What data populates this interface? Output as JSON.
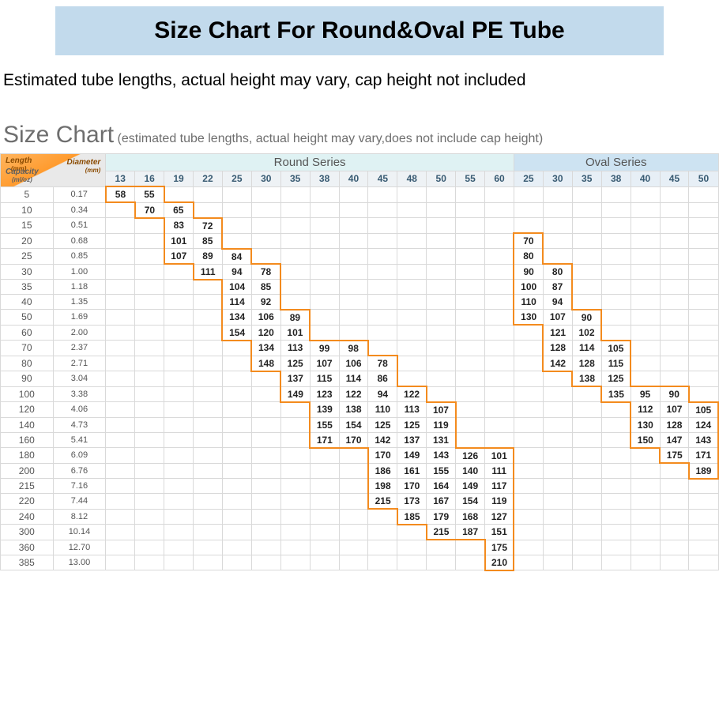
{
  "title": "Size Chart For Round&Oval PE Tube",
  "subtitle": "Estimated tube lengths, actual height may vary, cap height not included",
  "chartHeading": "Size Chart",
  "chartHeadingNote": "(estimated tube lengths, actual height may vary,does not include cap height)",
  "corner": {
    "length": "Length",
    "lengthUnit": "(mm)",
    "diameter": "Diameter",
    "diameterUnit": "(mm)",
    "capacity": "Capacity",
    "capacityUnit": "(ml/oz)"
  },
  "series": {
    "round": "Round Series",
    "oval": "Oval Series"
  },
  "roundDiameters": [
    13,
    16,
    19,
    22,
    25,
    30,
    35,
    38,
    40,
    45,
    48,
    50,
    55,
    60
  ],
  "ovalDiameters": [
    25,
    30,
    35,
    38,
    40,
    45,
    50
  ],
  "colors": {
    "banner_bg": "#c2daec",
    "round_header_bg": "#dff2f3",
    "oval_header_bg": "#cde3f2",
    "diam_bg": "#eef2f5",
    "grid": "#d9d9d9",
    "step_border": "#f38b1e",
    "text": "#444444",
    "heading_grey": "#6e6e6e"
  },
  "rows": [
    {
      "cap": 5,
      "oz": "0.17",
      "round": {
        "13": 58,
        "16": 55
      },
      "oval": {}
    },
    {
      "cap": 10,
      "oz": "0.34",
      "round": {
        "16": 70,
        "19": 65
      },
      "oval": {}
    },
    {
      "cap": 15,
      "oz": "0.51",
      "round": {
        "19": 83,
        "22": 72
      },
      "oval": {}
    },
    {
      "cap": 20,
      "oz": "0.68",
      "round": {
        "19": 101,
        "22": 85
      },
      "oval": {
        "25": 70
      }
    },
    {
      "cap": 25,
      "oz": "0.85",
      "round": {
        "19": 107,
        "22": 89,
        "25": 84
      },
      "oval": {
        "25": 80
      }
    },
    {
      "cap": 30,
      "oz": "1.00",
      "round": {
        "22": 111,
        "25": 94,
        "30": 78
      },
      "oval": {
        "25": 90,
        "30": 80
      }
    },
    {
      "cap": 35,
      "oz": "1.18",
      "round": {
        "25": 104,
        "30": 85
      },
      "oval": {
        "25": 100,
        "30": 87
      }
    },
    {
      "cap": 40,
      "oz": "1.35",
      "round": {
        "25": 114,
        "30": 92
      },
      "oval": {
        "25": 110,
        "30": 94
      }
    },
    {
      "cap": 50,
      "oz": "1.69",
      "round": {
        "25": 134,
        "30": 106,
        "35": 89
      },
      "oval": {
        "25": 130,
        "30": 107,
        "35": 90
      }
    },
    {
      "cap": 60,
      "oz": "2.00",
      "round": {
        "25": 154,
        "30": 120,
        "35": 101
      },
      "oval": {
        "30": 121,
        "35": 102
      }
    },
    {
      "cap": 70,
      "oz": "2.37",
      "round": {
        "30": 134,
        "35": 113,
        "38": 99,
        "40": 98
      },
      "oval": {
        "30": 128,
        "35": 114,
        "38": 105
      }
    },
    {
      "cap": 80,
      "oz": "2.71",
      "round": {
        "30": 148,
        "35": 125,
        "38": 107,
        "40": 106,
        "45": 78
      },
      "oval": {
        "30": 142,
        "35": 128,
        "38": 115
      }
    },
    {
      "cap": 90,
      "oz": "3.04",
      "round": {
        "35": 137,
        "38": 115,
        "40": 114,
        "45": 86
      },
      "oval": {
        "35": 138,
        "38": 125
      }
    },
    {
      "cap": 100,
      "oz": "3.38",
      "round": {
        "35": 149,
        "38": 123,
        "40": 122,
        "45": 94,
        "48": 122
      },
      "oval": {
        "38": 135,
        "40": 95,
        "45": 90
      }
    },
    {
      "cap": 120,
      "oz": "4.06",
      "round": {
        "38": 139,
        "40": 138,
        "45": 110,
        "48": 113,
        "50": 107
      },
      "oval": {
        "40": 112,
        "45": 107,
        "50": 105
      }
    },
    {
      "cap": 140,
      "oz": "4.73",
      "round": {
        "38": 155,
        "40": 154,
        "45": 125,
        "48": 125,
        "50": 119
      },
      "oval": {
        "40": 130,
        "45": 128,
        "50": 124
      }
    },
    {
      "cap": 160,
      "oz": "5.41",
      "round": {
        "38": 171,
        "40": 170,
        "45": 142,
        "48": 137,
        "50": 131
      },
      "oval": {
        "40": 150,
        "45": 147,
        "50": 143
      }
    },
    {
      "cap": 180,
      "oz": "6.09",
      "round": {
        "45": 170,
        "48": 149,
        "50": 143,
        "55": 126,
        "60": 101
      },
      "oval": {
        "45": 175,
        "50": 171
      }
    },
    {
      "cap": 200,
      "oz": "6.76",
      "round": {
        "45": 186,
        "48": 161,
        "50": 155,
        "55": 140,
        "60": 111
      },
      "oval": {
        "50": 189
      }
    },
    {
      "cap": 215,
      "oz": "7.16",
      "round": {
        "45": 198,
        "48": 170,
        "50": 164,
        "55": 149,
        "60": 117
      },
      "oval": {}
    },
    {
      "cap": 220,
      "oz": "7.44",
      "round": {
        "45": 215,
        "48": 173,
        "50": 167,
        "55": 154,
        "60": 119
      },
      "oval": {}
    },
    {
      "cap": 240,
      "oz": "8.12",
      "round": {
        "48": 185,
        "50": 179,
        "55": 168,
        "60": 127
      },
      "oval": {}
    },
    {
      "cap": 300,
      "oz": "10.14",
      "round": {
        "50": 215,
        "55": 187,
        "60": 151
      },
      "oval": {}
    },
    {
      "cap": 360,
      "oz": "12.70",
      "round": {
        "60": 175
      },
      "oval": {}
    },
    {
      "cap": 385,
      "oz": "13.00",
      "round": {
        "60": 210
      },
      "oval": {}
    }
  ]
}
